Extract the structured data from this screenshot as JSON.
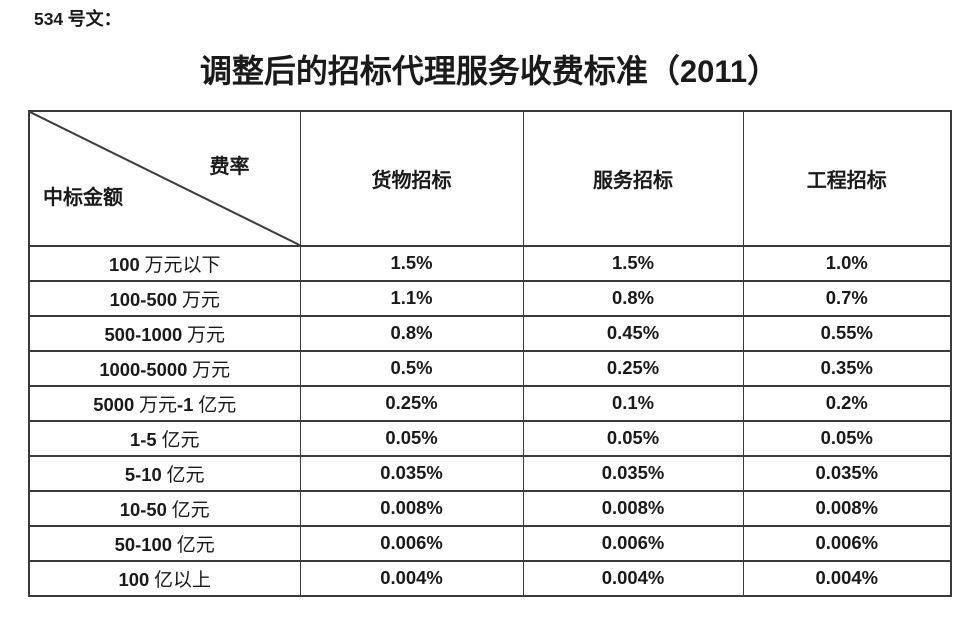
{
  "document": {
    "doc_number": "534 号文：",
    "title": "调整后的招标代理服务收费标准（2011）"
  },
  "table": {
    "corner": {
      "top_right_label": "费率",
      "bottom_left_label": "中标金额"
    },
    "column_headers": [
      "货物招标",
      "服务招标",
      "工程招标"
    ],
    "rows": [
      {
        "amount": "100 万元以下",
        "values": [
          "1.5%",
          "1.5%",
          "1.0%"
        ]
      },
      {
        "amount": "100-500 万元",
        "values": [
          "1.1%",
          "0.8%",
          "0.7%"
        ]
      },
      {
        "amount": "500-1000 万元",
        "values": [
          "0.8%",
          "0.45%",
          "0.55%"
        ]
      },
      {
        "amount": "1000-5000 万元",
        "values": [
          "0.5%",
          "0.25%",
          "0.35%"
        ]
      },
      {
        "amount": "5000 万元-1 亿元",
        "values": [
          "0.25%",
          "0.1%",
          "0.2%"
        ]
      },
      {
        "amount": "1-5 亿元",
        "values": [
          "0.05%",
          "0.05%",
          "0.05%"
        ]
      },
      {
        "amount": "5-10 亿元",
        "values": [
          "0.035%",
          "0.035%",
          "0.035%"
        ]
      },
      {
        "amount": "10-50 亿元",
        "values": [
          "0.008%",
          "0.008%",
          "0.008%"
        ]
      },
      {
        "amount": "50-100 亿元",
        "values": [
          "0.006%",
          "0.006%",
          "0.006%"
        ]
      },
      {
        "amount": "100 亿以上",
        "values": [
          "0.004%",
          "0.004%",
          "0.004%"
        ]
      }
    ]
  },
  "colors": {
    "text": "#1a1a1a",
    "border": "#3b3b3b",
    "background": "#ffffff"
  }
}
